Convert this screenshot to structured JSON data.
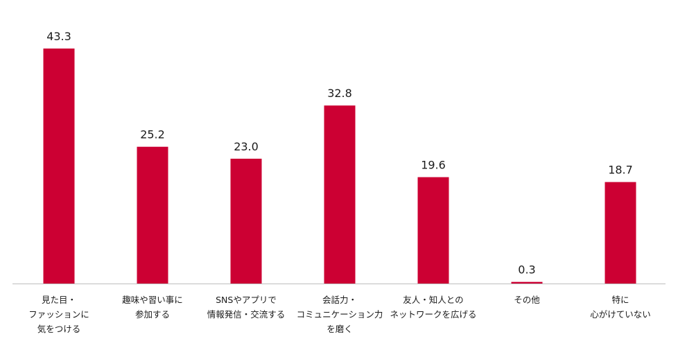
{
  "chart_data": {
    "type": "bar",
    "categories": [
      [
        "見た目・",
        "ファッションに",
        "気をつける"
      ],
      [
        "趣味や習い事に",
        "参加する"
      ],
      [
        "SNSやアプリで",
        "情報発信・交流する"
      ],
      [
        "会話力・",
        "コミュニケーション力",
        "を磨く"
      ],
      [
        "友人・知人との",
        "ネットワークを広げる"
      ],
      [
        "その他"
      ],
      [
        "特に",
        "心がけていない"
      ]
    ],
    "values": [
      43.3,
      25.2,
      23.0,
      32.8,
      19.6,
      0.3,
      18.7
    ],
    "value_labels": [
      "43.3",
      "25.2",
      "23.0",
      "32.8",
      "19.6",
      "0.3",
      "18.7"
    ],
    "title": "",
    "xlabel": "",
    "ylabel": "",
    "ylim": [
      0,
      43.3
    ],
    "grid": false,
    "legend": "none",
    "bar_color": "#cc0033",
    "baseline_color": "#bdbdbd"
  }
}
